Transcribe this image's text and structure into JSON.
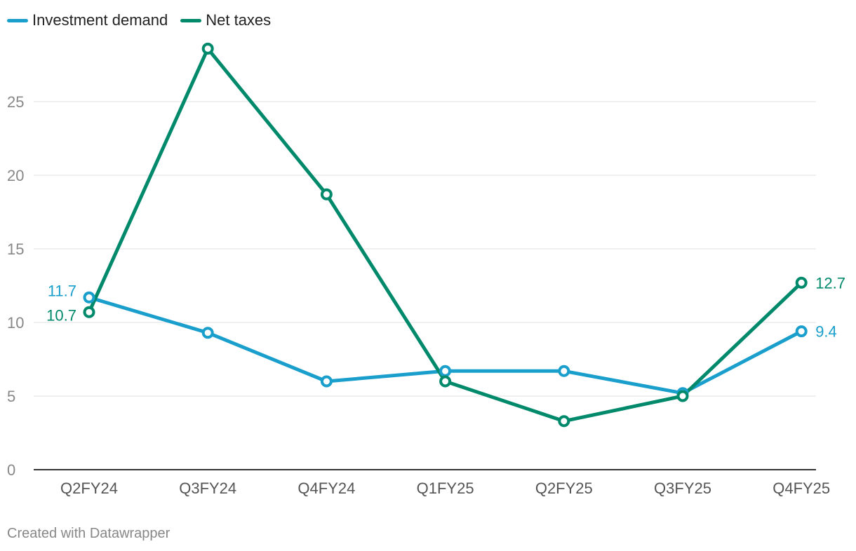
{
  "legend": {
    "items": [
      {
        "label": "Investment demand",
        "color": "#1a9fcc"
      },
      {
        "label": "Net taxes",
        "color": "#00896b"
      }
    ]
  },
  "footer": {
    "credit": "Created with Datawrapper"
  },
  "chart_data": {
    "type": "line",
    "title": "",
    "xlabel": "",
    "ylabel": "",
    "categories": [
      "Q2FY24",
      "Q3FY24",
      "Q4FY24",
      "Q1FY25",
      "Q2FY25",
      "Q3FY25",
      "Q4FY25"
    ],
    "ylim": [
      0,
      29
    ],
    "yticks": [
      0,
      5,
      10,
      15,
      20,
      25
    ],
    "series": [
      {
        "name": "Investment demand",
        "color": "#1a9fcc",
        "values": [
          11.7,
          9.3,
          6.0,
          6.7,
          6.7,
          5.2,
          9.4
        ],
        "labels": {
          "start": "11.7",
          "end": "9.4"
        }
      },
      {
        "name": "Net taxes",
        "color": "#00896b",
        "values": [
          10.7,
          28.6,
          18.7,
          6.0,
          3.3,
          5.0,
          12.7
        ],
        "labels": {
          "start": "10.7",
          "end": "12.7"
        }
      }
    ]
  }
}
